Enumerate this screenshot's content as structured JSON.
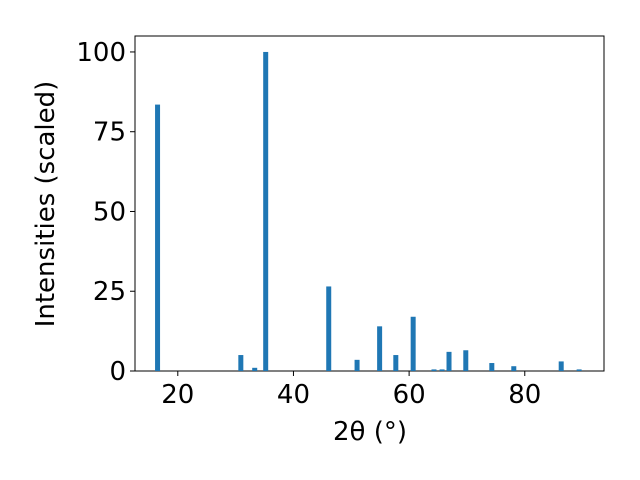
{
  "chart_data": {
    "type": "bar",
    "xlabel": "2θ (°)",
    "ylabel": "Intensities (scaled)",
    "x": [
      16.5,
      30.9,
      33.3,
      35.2,
      46.1,
      51.0,
      54.9,
      57.7,
      60.7,
      64.3,
      65.7,
      66.9,
      69.8,
      74.3,
      78.1,
      86.3,
      89.4
    ],
    "values": [
      83.5,
      5,
      1,
      100,
      26.5,
      3.5,
      14,
      5,
      17,
      0.5,
      0.5,
      6,
      6.5,
      2.5,
      1.5,
      3,
      0.5
    ],
    "color": "#1f77b4",
    "xlim": [
      12.6,
      93.7
    ],
    "xticks": [
      20,
      40,
      60,
      80
    ],
    "ylim": [
      0,
      105
    ],
    "yticks": [
      0,
      25,
      50,
      75,
      100
    ]
  }
}
